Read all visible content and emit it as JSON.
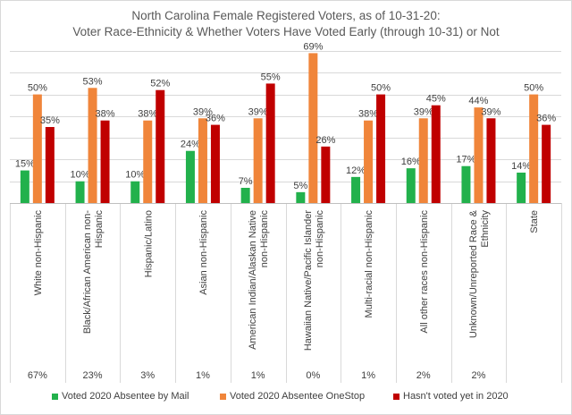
{
  "chart_data": {
    "type": "bar",
    "title": "North Carolina Female Registered Voters, as of 10-31-20:",
    "subtitle": "Voter Race-Ethnicity & Whether Voters Have Voted Early (through 10-31) or Not",
    "categories": [
      "White non-Hispanic",
      "Black/African American non-Hispanic",
      "Hispanic/Latino",
      "Asian non-Hispanic",
      "American Indian/Alaskan Native non-Hispanic",
      "Hawaiian Native/Pacific Islander non-Hispanic",
      "Multi-racial non-Hispanic",
      "All other races non-Hispanic",
      "Unknown/Unreported Race & Ethnicity",
      "State"
    ],
    "category_labels": [
      [
        "White non-Hispanic"
      ],
      [
        "Black/African American non-",
        "Hispanic"
      ],
      [
        "Hispanic/Latino"
      ],
      [
        "Asian non-Hispanic"
      ],
      [
        "American Indian/Alaskan Native",
        "non-Hispanic"
      ],
      [
        "Hawaiian Native/Pacific Islander",
        "non-Hispanic"
      ],
      [
        "Multi-racial non-Hispanic"
      ],
      [
        "All other races non-Hispanic"
      ],
      [
        "Unknown/Unreported Race &",
        "Ethnicity"
      ],
      [
        "State"
      ]
    ],
    "shares": [
      "67%",
      "23%",
      "3%",
      "1%",
      "1%",
      "0%",
      "1%",
      "2%",
      "2%",
      ""
    ],
    "series": [
      {
        "name": "Voted 2020 Absentee by Mail",
        "color": "#22b14c",
        "values": [
          15,
          10,
          10,
          24,
          7,
          5,
          12,
          16,
          17,
          14
        ]
      },
      {
        "name": "Voted 2020 Absentee OneStop",
        "color": "#f0853a",
        "values": [
          50,
          53,
          38,
          39,
          39,
          69,
          38,
          39,
          44,
          50
        ]
      },
      {
        "name": "Hasn't voted yet in 2020",
        "color": "#c00000",
        "values": [
          35,
          38,
          52,
          36,
          55,
          26,
          50,
          45,
          39,
          36
        ]
      }
    ],
    "value_suffix": "%",
    "ylim": [
      0,
      70
    ],
    "grid": true,
    "legend": "bottom",
    "xlabel": "",
    "ylabel": ""
  }
}
